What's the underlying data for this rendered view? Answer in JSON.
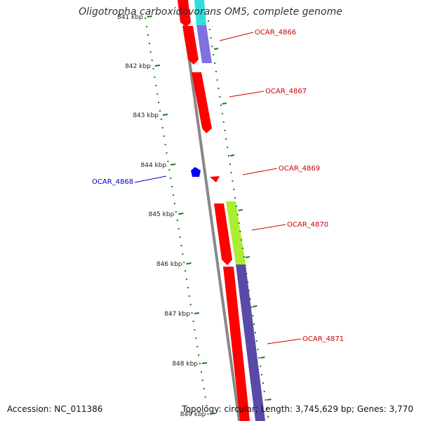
{
  "title": "Oligotropha carboxidovorans OM5, complete genome",
  "footer": {
    "accession": "Accession: NC_011386",
    "summary": "Topology: circular; Length: 3,745,629 bp; Genes: 3,770"
  },
  "ticks": [
    {
      "label": "841 kbp",
      "pos": 841
    },
    {
      "label": "842 kbp",
      "pos": 842
    },
    {
      "label": "843 kbp",
      "pos": 843
    },
    {
      "label": "844 kbp",
      "pos": 844
    },
    {
      "label": "845 kbp",
      "pos": 845
    },
    {
      "label": "846 kbp",
      "pos": 846
    },
    {
      "label": "847 kbp",
      "pos": 847
    },
    {
      "label": "848 kbp",
      "pos": 848
    },
    {
      "label": "849 kbp",
      "pos": 849
    }
  ],
  "gene_labels": [
    {
      "name": "OCAR_4866",
      "color": "#cc0000"
    },
    {
      "name": "OCAR_4867",
      "color": "#cc0000"
    },
    {
      "name": "OCAR_4868",
      "color": "#0000cc"
    },
    {
      "name": "OCAR_4869",
      "color": "#cc0000"
    },
    {
      "name": "OCAR_4870",
      "color": "#cc0000"
    },
    {
      "name": "OCAR_4871",
      "color": "#cc0000"
    }
  ],
  "colors": {
    "forward_cds": "#ff0000",
    "reverse_cds": "#0000ff",
    "backbone": "#8a8a8a",
    "tick_marks": "#1a7a1a",
    "cog_cyan": "#33dddd",
    "cog_purple": "#8070e0",
    "cog_lime": "#aaee33",
    "cog_darkpurple": "#5a4aa8"
  }
}
